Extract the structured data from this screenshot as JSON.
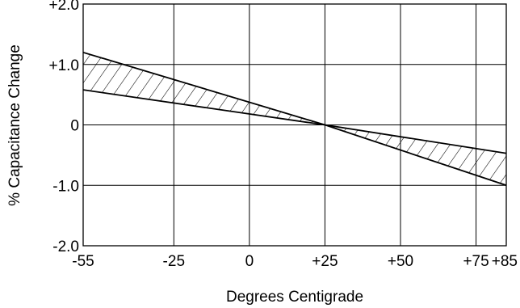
{
  "chart_data": {
    "type": "area",
    "title": "",
    "xlabel": "Degrees Centigrade",
    "ylabel": "% Capacitance Change",
    "x_ticks": [
      {
        "value": -55,
        "label": "-55"
      },
      {
        "value": -25,
        "label": "-25"
      },
      {
        "value": 0,
        "label": "0"
      },
      {
        "value": 25,
        "label": "+25"
      },
      {
        "value": 50,
        "label": "+50"
      },
      {
        "value": 75,
        "label": "+75"
      },
      {
        "value": 85,
        "label": "+85"
      }
    ],
    "y_ticks": [
      {
        "value": 2.0,
        "label": "+2.0"
      },
      {
        "value": 1.0,
        "label": "+1.0"
      },
      {
        "value": 0,
        "label": "0"
      },
      {
        "value": -1.0,
        "label": "-1.0"
      },
      {
        "value": -2.0,
        "label": "-2.0"
      }
    ],
    "xlim": [
      -55,
      85
    ],
    "ylim": [
      -2.0,
      2.0
    ],
    "grid": true,
    "legend": "none",
    "series": [
      {
        "x": [
          -55,
          25,
          85
        ],
        "y": [
          1.2,
          0,
          -1.0
        ]
      },
      {
        "x": [
          -55,
          25,
          85
        ],
        "y": [
          0.58,
          0,
          -0.47
        ]
      }
    ],
    "band": "hatched region between the two lines",
    "colors": {
      "line": "#000000",
      "grid": "#000000",
      "background": "#ffffff"
    }
  }
}
